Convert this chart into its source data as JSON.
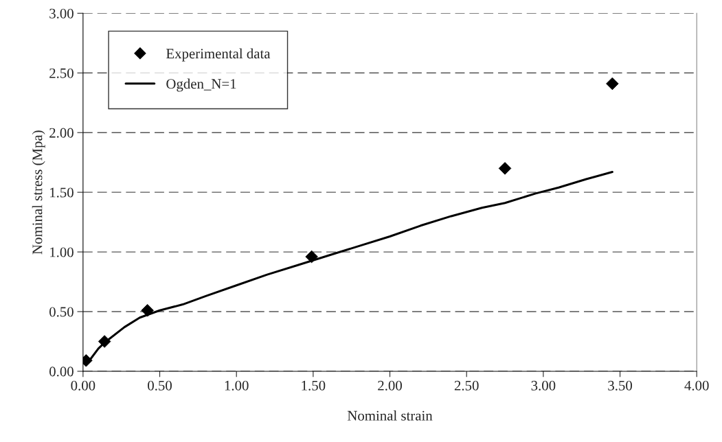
{
  "chart_data": {
    "type": "line",
    "xlabel": "Nominal strain",
    "ylabel": "Nominal stress (Mpa)",
    "xlim": [
      0,
      4
    ],
    "xticks": [
      {
        "value": 0,
        "label": "0.00"
      },
      {
        "value": 0.5,
        "label": "0.50"
      },
      {
        "value": 1,
        "label": "1.00"
      },
      {
        "value": 1.5,
        "label": "1.50"
      },
      {
        "value": 2,
        "label": "2.00"
      },
      {
        "value": 2.5,
        "label": "2.50"
      },
      {
        "value": 3,
        "label": "3.00"
      },
      {
        "value": 3.5,
        "label": "3.50"
      },
      {
        "value": 4,
        "label": "4.00"
      }
    ],
    "ylim": [
      0,
      3
    ],
    "yticks": [
      {
        "value": 0,
        "label": "0.00"
      },
      {
        "value": 0.5,
        "label": "0.50"
      },
      {
        "value": 1,
        "label": "1.00"
      },
      {
        "value": 1.5,
        "label": "1.50"
      },
      {
        "value": 2,
        "label": "2.00"
      },
      {
        "value": 2.5,
        "label": "2.50"
      },
      {
        "value": 3,
        "label": "3.00"
      }
    ],
    "grid": "y",
    "legend": "top left",
    "series": [
      {
        "name": "Experimental data",
        "type": "scatter",
        "marker": "diamond",
        "color": "#000000",
        "x": [
          0.02,
          0.14,
          0.42,
          1.49,
          2.75,
          3.45
        ],
        "values": [
          0.09,
          0.25,
          0.51,
          0.96,
          1.7,
          2.41
        ]
      },
      {
        "name": "Ogden_N=1",
        "line_style": "solid",
        "color": "#000000",
        "x": [
          0.03,
          0.1,
          0.14,
          0.27,
          0.37,
          0.5,
          0.65,
          0.8,
          1.0,
          1.2,
          1.4,
          1.5,
          1.65,
          1.8,
          2.0,
          2.2,
          2.4,
          2.6,
          2.75,
          2.95,
          3.1,
          3.28,
          3.45
        ],
        "values": [
          0.07,
          0.19,
          0.24,
          0.37,
          0.45,
          0.51,
          0.56,
          0.63,
          0.72,
          0.81,
          0.89,
          0.93,
          0.99,
          1.05,
          1.13,
          1.22,
          1.3,
          1.37,
          1.41,
          1.49,
          1.54,
          1.61,
          1.67
        ]
      }
    ]
  }
}
